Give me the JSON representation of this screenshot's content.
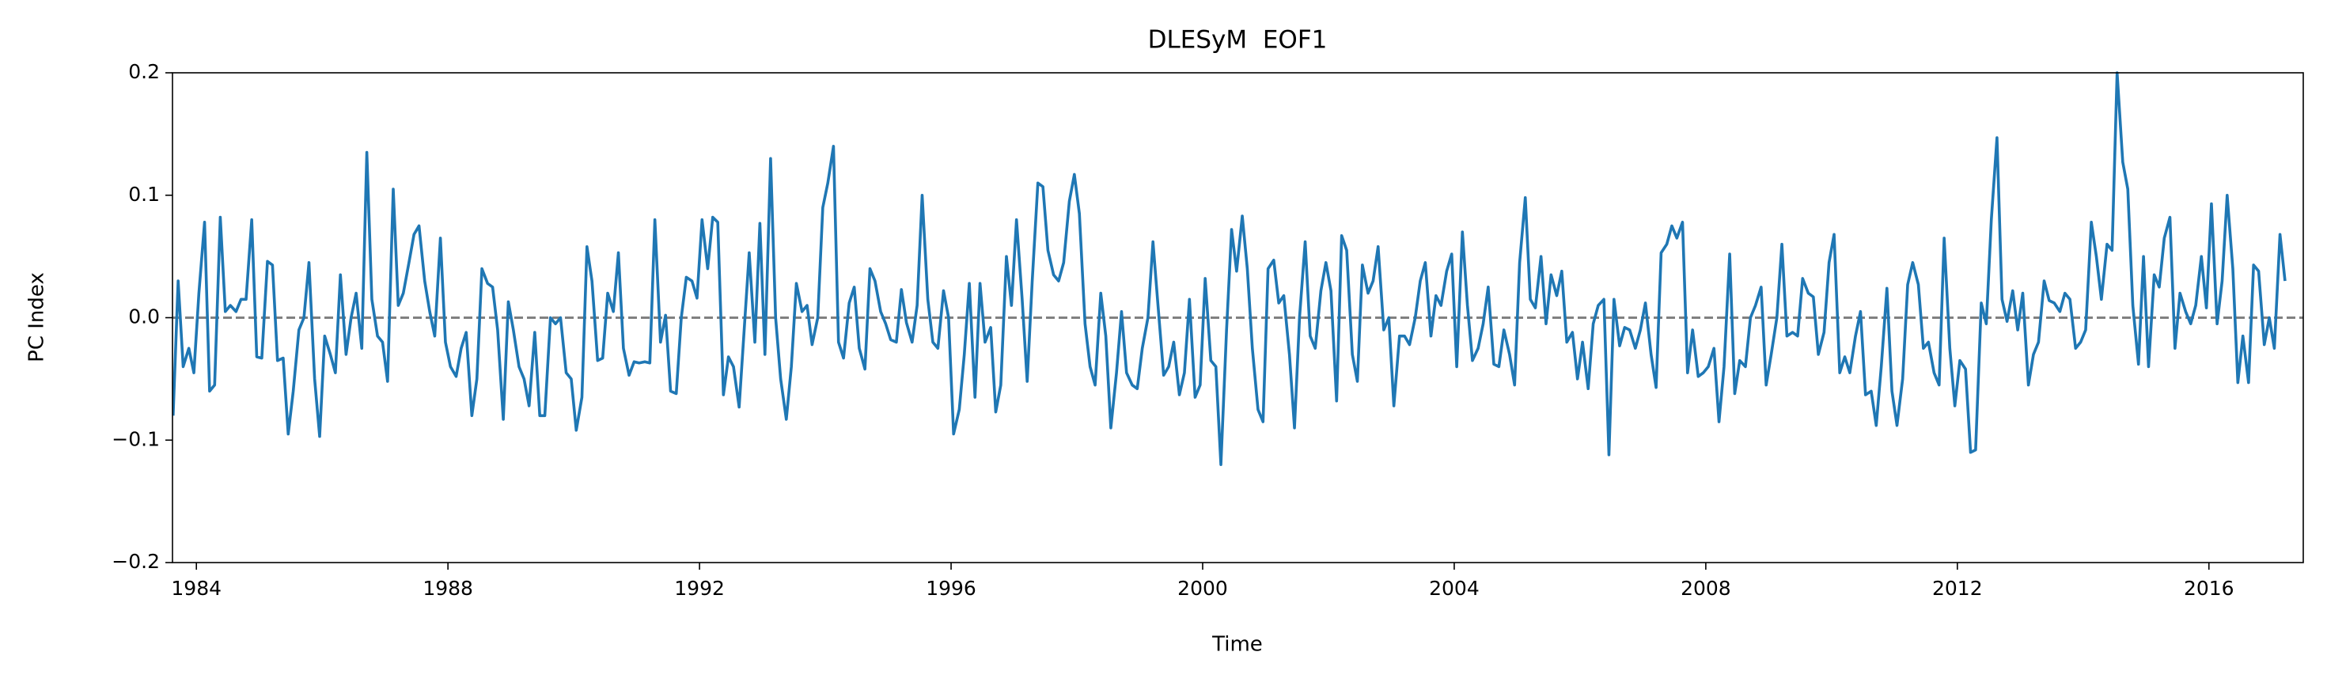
{
  "chart_data": {
    "type": "line",
    "title": "DLESyM  EOF1",
    "xlabel": "Time",
    "ylabel": "PC Index",
    "xlim": [
      1983.62,
      2017.5
    ],
    "ylim": [
      -0.2,
      0.2
    ],
    "xticks": [
      1984,
      1988,
      1992,
      1996,
      2000,
      2004,
      2008,
      2012,
      2016
    ],
    "yticks": [
      {
        "value": -0.2,
        "label": "−0.2"
      },
      {
        "value": -0.1,
        "label": "−0.1"
      },
      {
        "value": 0,
        "label": "0.0"
      },
      {
        "value": 0.1,
        "label": "0.1"
      },
      {
        "value": 0.2,
        "label": "0.2"
      }
    ],
    "hline": {
      "value": 0,
      "color": "#808080",
      "style": "dashed"
    },
    "x": [
      1983.63,
      1983.71,
      1983.79,
      1983.88,
      1983.96,
      1984.04,
      1984.13,
      1984.21,
      1984.29,
      1984.38,
      1984.46,
      1984.54,
      1984.63,
      1984.71,
      1984.79,
      1984.88,
      1984.96,
      1985.04,
      1985.13,
      1985.21,
      1985.29,
      1985.38,
      1985.46,
      1985.54,
      1985.63,
      1985.71,
      1985.79,
      1985.88,
      1985.96,
      1986.04,
      1986.13,
      1986.21,
      1986.29,
      1986.38,
      1986.46,
      1986.54,
      1986.63,
      1986.71,
      1986.79,
      1986.88,
      1986.96,
      1987.04,
      1987.13,
      1987.21,
      1987.29,
      1987.38,
      1987.46,
      1987.54,
      1987.63,
      1987.71,
      1987.79,
      1987.88,
      1987.96,
      1988.04,
      1988.13,
      1988.21,
      1988.29,
      1988.38,
      1988.46,
      1988.54,
      1988.63,
      1988.71,
      1988.79,
      1988.88,
      1988.96,
      1989.04,
      1989.13,
      1989.21,
      1989.29,
      1989.38,
      1989.46,
      1989.54,
      1989.63,
      1989.71,
      1989.79,
      1989.88,
      1989.96,
      1990.04,
      1990.13,
      1990.21,
      1990.29,
      1990.38,
      1990.46,
      1990.54,
      1990.63,
      1990.71,
      1990.79,
      1990.88,
      1990.96,
      1991.04,
      1991.13,
      1991.21,
      1991.29,
      1991.38,
      1991.46,
      1991.54,
      1991.63,
      1991.71,
      1991.79,
      1991.88,
      1991.96,
      1992.04,
      1992.13,
      1992.21,
      1992.29,
      1992.38,
      1992.46,
      1992.54,
      1992.63,
      1992.71,
      1992.79,
      1992.88,
      1992.96,
      1993.04,
      1993.13,
      1993.21,
      1993.29,
      1993.38,
      1993.46,
      1993.54,
      1993.63,
      1993.71,
      1993.79,
      1993.88,
      1993.96,
      1994.04,
      1994.13,
      1994.21,
      1994.29,
      1994.38,
      1994.46,
      1994.54,
      1994.63,
      1994.71,
      1994.79,
      1994.88,
      1994.96,
      1995.04,
      1995.13,
      1995.21,
      1995.29,
      1995.38,
      1995.46,
      1995.54,
      1995.63,
      1995.71,
      1995.79,
      1995.88,
      1995.96,
      1996.04,
      1996.13,
      1996.21,
      1996.29,
      1996.38,
      1996.46,
      1996.54,
      1996.63,
      1996.71,
      1996.79,
      1996.88,
      1996.96,
      1997.04,
      1997.13,
      1997.21,
      1997.29,
      1997.38,
      1997.46,
      1997.54,
      1997.63,
      1997.71,
      1997.79,
      1997.88,
      1997.96,
      1998.04,
      1998.13,
      1998.21,
      1998.29,
      1998.38,
      1998.46,
      1998.54,
      1998.63,
      1998.71,
      1998.79,
      1998.88,
      1998.96,
      1999.04,
      1999.13,
      1999.21,
      1999.29,
      1999.38,
      1999.46,
      1999.54,
      1999.63,
      1999.71,
      1999.79,
      1999.88,
      1999.96,
      2000.04,
      2000.13,
      2000.21,
      2000.29,
      2000.38,
      2000.46,
      2000.54,
      2000.63,
      2000.71,
      2000.79,
      2000.88,
      2000.96,
      2001.04,
      2001.13,
      2001.21,
      2001.29,
      2001.38,
      2001.46,
      2001.54,
      2001.63,
      2001.71,
      2001.79,
      2001.88,
      2001.96,
      2002.04,
      2002.13,
      2002.21,
      2002.29,
      2002.38,
      2002.46,
      2002.54,
      2002.63,
      2002.71,
      2002.79,
      2002.88,
      2002.96,
      2003.04,
      2003.13,
      2003.21,
      2003.29,
      2003.38,
      2003.46,
      2003.54,
      2003.63,
      2003.71,
      2003.79,
      2003.88,
      2003.96,
      2004.04,
      2004.13,
      2004.21,
      2004.29,
      2004.38,
      2004.46,
      2004.54,
      2004.63,
      2004.71,
      2004.79,
      2004.88,
      2004.96,
      2005.04,
      2005.13,
      2005.21,
      2005.29,
      2005.38,
      2005.46,
      2005.54,
      2005.63,
      2005.71,
      2005.79,
      2005.88,
      2005.96,
      2006.04,
      2006.13,
      2006.21,
      2006.29,
      2006.38,
      2006.46,
      2006.54,
      2006.63,
      2006.71,
      2006.79,
      2006.88,
      2006.96,
      2007.04,
      2007.13,
      2007.21,
      2007.29,
      2007.38,
      2007.46,
      2007.54,
      2007.63,
      2007.71,
      2007.79,
      2007.88,
      2007.96,
      2008.04,
      2008.13,
      2008.21,
      2008.29,
      2008.38,
      2008.46,
      2008.54,
      2008.63,
      2008.71,
      2008.79,
      2008.88,
      2008.96,
      2009.04,
      2009.13,
      2009.21,
      2009.29,
      2009.38,
      2009.46,
      2009.54,
      2009.63,
      2009.71,
      2009.79,
      2009.88,
      2009.96,
      2010.04,
      2010.13,
      2010.21,
      2010.29,
      2010.38,
      2010.46,
      2010.54,
      2010.63,
      2010.71,
      2010.79,
      2010.88,
      2010.96,
      2011.04,
      2011.13,
      2011.21,
      2011.29,
      2011.38,
      2011.46,
      2011.54,
      2011.63,
      2011.71,
      2011.79,
      2011.88,
      2011.96,
      2012.04,
      2012.13,
      2012.21,
      2012.29,
      2012.38,
      2012.46,
      2012.54,
      2012.63,
      2012.71,
      2012.79,
      2012.88,
      2012.96,
      2013.04,
      2013.13,
      2013.21,
      2013.29,
      2013.38,
      2013.46,
      2013.54,
      2013.63,
      2013.71,
      2013.79,
      2013.88,
      2013.96,
      2014.04,
      2014.13,
      2014.21,
      2014.29,
      2014.38,
      2014.46,
      2014.54,
      2014.63,
      2014.71,
      2014.79,
      2014.88,
      2014.96,
      2015.04,
      2015.13,
      2015.21,
      2015.29,
      2015.38,
      2015.46,
      2015.54,
      2015.63,
      2015.71,
      2015.79,
      2015.88,
      2015.96,
      2016.04,
      2016.13,
      2016.21,
      2016.29,
      2016.38,
      2016.46,
      2016.54,
      2016.63,
      2016.71,
      2016.79,
      2016.88,
      2016.96,
      2017.04,
      2017.13,
      2017.21
    ],
    "series": [
      {
        "color": "#1f77b4",
        "values": [
          -0.08,
          0.03,
          -0.04,
          -0.025,
          -0.045,
          0.02,
          0.078,
          -0.06,
          -0.055,
          0.082,
          0.005,
          0.01,
          0.005,
          0.015,
          0.015,
          0.08,
          -0.032,
          -0.033,
          0.046,
          0.043,
          -0.035,
          -0.033,
          -0.095,
          -0.06,
          -0.01,
          0.0,
          0.045,
          -0.05,
          -0.097,
          -0.015,
          -0.03,
          -0.045,
          0.035,
          -0.03,
          0.0,
          0.02,
          -0.025,
          0.135,
          0.015,
          -0.015,
          -0.02,
          -0.052,
          0.105,
          0.01,
          0.02,
          0.045,
          0.068,
          0.075,
          0.03,
          0.005,
          -0.015,
          0.065,
          -0.02,
          -0.04,
          -0.048,
          -0.025,
          -0.012,
          -0.08,
          -0.05,
          0.04,
          0.028,
          0.025,
          -0.01,
          -0.083,
          0.013,
          -0.01,
          -0.04,
          -0.05,
          -0.072,
          -0.012,
          -0.08,
          -0.08,
          0.0,
          -0.005,
          0.0,
          -0.045,
          -0.05,
          -0.092,
          -0.065,
          0.058,
          0.03,
          -0.035,
          -0.033,
          0.02,
          0.005,
          0.053,
          -0.025,
          -0.047,
          -0.036,
          -0.037,
          -0.036,
          -0.037,
          0.08,
          -0.02,
          0.002,
          -0.06,
          -0.062,
          0.0,
          0.033,
          0.03,
          0.016,
          0.08,
          0.04,
          0.082,
          0.078,
          -0.063,
          -0.032,
          -0.04,
          -0.073,
          -0.01,
          0.053,
          -0.02,
          0.077,
          -0.03,
          0.13,
          0.0,
          -0.05,
          -0.083,
          -0.04,
          0.028,
          0.005,
          0.01,
          -0.022,
          0.0,
          0.09,
          0.11,
          0.14,
          -0.02,
          -0.033,
          0.012,
          0.025,
          -0.025,
          -0.042,
          0.04,
          0.03,
          0.005,
          -0.005,
          -0.018,
          -0.02,
          0.023,
          -0.004,
          -0.02,
          0.01,
          0.1,
          0.015,
          -0.02,
          -0.025,
          0.022,
          0.0,
          -0.095,
          -0.075,
          -0.03,
          0.028,
          -0.065,
          0.028,
          -0.02,
          -0.008,
          -0.077,
          -0.055,
          0.05,
          0.01,
          0.08,
          0.015,
          -0.052,
          0.03,
          0.11,
          0.107,
          0.055,
          0.035,
          0.03,
          0.045,
          0.095,
          0.117,
          0.085,
          -0.005,
          -0.04,
          -0.055,
          0.02,
          -0.015,
          -0.09,
          -0.045,
          0.005,
          -0.045,
          -0.055,
          -0.058,
          -0.025,
          0.0,
          0.062,
          0.01,
          -0.047,
          -0.04,
          -0.02,
          -0.063,
          -0.045,
          0.015,
          -0.065,
          -0.055,
          0.032,
          -0.035,
          -0.04,
          -0.12,
          -0.01,
          0.072,
          0.038,
          0.083,
          0.04,
          -0.025,
          -0.075,
          -0.085,
          0.04,
          0.047,
          0.012,
          0.018,
          -0.03,
          -0.09,
          0.0,
          0.062,
          -0.015,
          -0.025,
          0.022,
          0.045,
          0.022,
          -0.068,
          0.067,
          0.055,
          -0.03,
          -0.052,
          0.043,
          0.02,
          0.03,
          0.058,
          -0.01,
          0.0,
          -0.072,
          -0.015,
          -0.015,
          -0.022,
          0.0,
          0.03,
          0.045,
          -0.015,
          0.018,
          0.01,
          0.038,
          0.052,
          -0.04,
          0.07,
          0.01,
          -0.035,
          -0.025,
          -0.005,
          0.025,
          -0.038,
          -0.04,
          -0.01,
          -0.03,
          -0.055,
          0.045,
          0.098,
          0.015,
          0.008,
          0.05,
          -0.005,
          0.035,
          0.018,
          0.038,
          -0.02,
          -0.012,
          -0.05,
          -0.02,
          -0.058,
          -0.005,
          0.01,
          0.015,
          -0.112,
          0.015,
          -0.023,
          -0.008,
          -0.01,
          -0.025,
          -0.01,
          0.012,
          -0.03,
          -0.057,
          0.053,
          0.06,
          0.075,
          0.065,
          0.078,
          -0.045,
          -0.01,
          -0.048,
          -0.045,
          -0.04,
          -0.025,
          -0.085,
          -0.04,
          0.052,
          -0.062,
          -0.035,
          -0.04,
          0.0,
          0.01,
          0.025,
          -0.055,
          -0.03,
          0.0,
          0.06,
          -0.015,
          -0.012,
          -0.015,
          0.032,
          0.02,
          0.017,
          -0.03,
          -0.012,
          0.045,
          0.068,
          -0.045,
          -0.032,
          -0.045,
          -0.015,
          0.005,
          -0.063,
          -0.06,
          -0.088,
          -0.04,
          0.024,
          -0.06,
          -0.088,
          -0.05,
          0.027,
          0.045,
          0.027,
          -0.025,
          -0.02,
          -0.045,
          -0.055,
          0.065,
          -0.025,
          -0.072,
          -0.035,
          -0.042,
          -0.11,
          -0.108,
          0.012,
          -0.005,
          0.08,
          0.147,
          0.015,
          -0.003,
          0.022,
          -0.01,
          0.02,
          -0.055,
          -0.03,
          -0.02,
          0.03,
          0.014,
          0.012,
          0.005,
          0.02,
          0.015,
          -0.025,
          -0.02,
          -0.01,
          0.078,
          0.05,
          0.015,
          0.06,
          0.055,
          0.2,
          0.127,
          0.105,
          0.01,
          -0.038,
          0.05,
          -0.04,
          0.035,
          0.025,
          0.065,
          0.082,
          -0.025,
          0.02,
          0.005,
          -0.005,
          0.01,
          0.05,
          0.008,
          0.093,
          -0.005,
          0.03,
          0.1,
          0.04,
          -0.053,
          -0.015,
          -0.053,
          0.043,
          0.038,
          -0.022,
          0.0,
          -0.025,
          0.068,
          0.03
        ]
      }
    ]
  }
}
